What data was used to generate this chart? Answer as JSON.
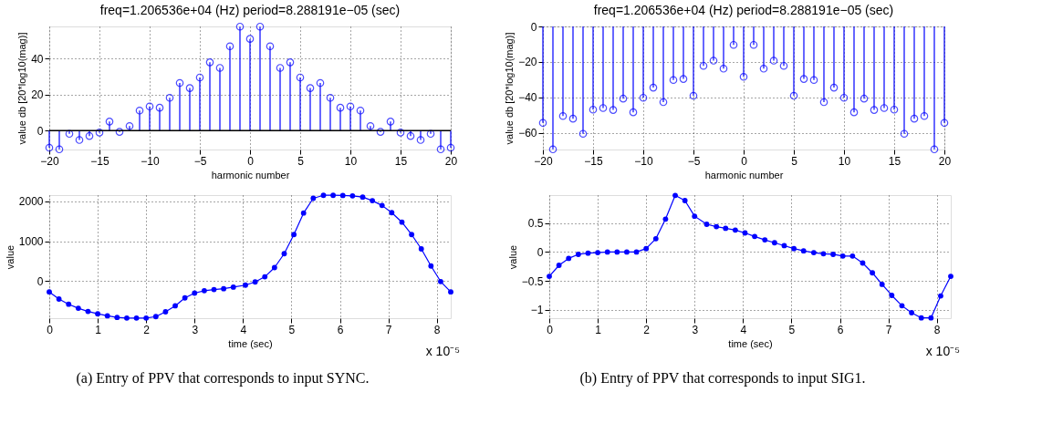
{
  "chart_data": [
    {
      "type": "lollipop",
      "title": "freq=1.206536e+04 (Hz)    period=8.288191e−05 (sec)",
      "xlabel": "harmonic number",
      "ylabel": "value  db  [20*log10(mag)]",
      "x": [
        -20,
        -19,
        -18,
        -17,
        -16,
        -15,
        -14,
        -13,
        -12,
        -11,
        -10,
        -9,
        -8,
        -7,
        -6,
        -5,
        -4,
        -3,
        -2,
        -1,
        0,
        1,
        2,
        3,
        4,
        5,
        6,
        7,
        8,
        9,
        10,
        11,
        12,
        13,
        14,
        15,
        16,
        17,
        18,
        19,
        20
      ],
      "series": [
        {
          "color": "#0000ff",
          "values": [
            -9.5,
            -10.4,
            -1.8,
            -5.2,
            -3,
            -1.1,
            5,
            -0.7,
            2.5,
            11.1,
            13.4,
            12.7,
            18.2,
            26.4,
            23.6,
            29.5,
            37.9,
            34.8,
            46.8,
            57.7,
            50.9,
            57.7,
            46.8,
            34.8,
            37.9,
            29.5,
            23.6,
            26.4,
            18.2,
            12.7,
            13.4,
            11.1,
            2.5,
            -0.7,
            5,
            -1.1,
            -3,
            -5.2,
            -1.8,
            -10.4,
            -9.5
          ]
        }
      ],
      "xlim": [
        -20,
        20
      ],
      "xticks": [
        -20,
        -15,
        -10,
        -5,
        0,
        5,
        10,
        15,
        20
      ],
      "ylim": [
        -10.5,
        57.8
      ],
      "yticks": [
        0,
        20,
        40
      ],
      "ref_lines": [
        {
          "axis": "y",
          "value": 0,
          "color": "#000000"
        }
      ],
      "grid": true,
      "marker": "circle"
    },
    {
      "type": "lollipop",
      "title": "freq=1.206536e+04 (Hz)    period=8.288191e−05 (sec)",
      "xlabel": "harmonic number",
      "ylabel": "value  db  [20*log10(mag)]",
      "x": [
        -20,
        -19,
        -18,
        -17,
        -16,
        -15,
        -14,
        -13,
        -12,
        -11,
        -10,
        -9,
        -8,
        -7,
        -6,
        -5,
        -4,
        -3,
        -2,
        -1,
        0,
        1,
        2,
        3,
        4,
        5,
        6,
        7,
        8,
        9,
        10,
        11,
        12,
        13,
        14,
        15,
        16,
        17,
        18,
        19,
        20
      ],
      "series": [
        {
          "color": "#0000ff",
          "values": [
            -54.4,
            -69.3,
            -50.5,
            -52,
            -60.5,
            -46.9,
            -46,
            -47.1,
            -40.7,
            -48.4,
            -40.2,
            -34.5,
            -42.7,
            -30.2,
            -29.6,
            -39.1,
            -22.2,
            -19.3,
            -23.8,
            -10.4,
            -28.4,
            -10.4,
            -23.8,
            -19.3,
            -22.2,
            -39.1,
            -29.6,
            -30.2,
            -42.7,
            -34.5,
            -40.2,
            -48.4,
            -40.7,
            -47.1,
            -46,
            -46.9,
            -60.5,
            -52,
            -50.5,
            -69.3,
            -54.4
          ]
        }
      ],
      "xlim": [
        -20,
        20
      ],
      "xticks": [
        -20,
        -15,
        -10,
        -5,
        0,
        5,
        10,
        15,
        20
      ],
      "ylim": [
        -69.4,
        0
      ],
      "yticks": [
        -60,
        -40,
        -20,
        0
      ],
      "grid": true,
      "marker": "circle"
    },
    {
      "type": "line",
      "xlabel": "time (sec)",
      "ylabel": "value",
      "x": [
        0,
        0.2,
        0.4,
        0.6,
        0.8,
        1.0,
        1.2,
        1.4,
        1.6,
        1.8,
        2.0,
        2.2,
        2.4,
        2.6,
        2.8,
        3.0,
        3.2,
        3.4,
        3.6,
        3.8,
        4.05,
        4.25,
        4.45,
        4.65,
        4.85,
        5.05,
        5.25,
        5.45,
        5.66,
        5.86,
        6.06,
        6.26,
        6.47,
        6.67,
        6.87,
        7.07,
        7.28,
        7.48,
        7.68,
        7.88,
        8.08,
        8.288
      ],
      "series": [
        {
          "color": "#0000ff",
          "values": [
            -270,
            -450,
            -580,
            -680,
            -760,
            -820,
            -870,
            -910,
            -927,
            -927,
            -927,
            -890,
            -770,
            -620,
            -420,
            -300,
            -240,
            -210,
            -190,
            -150,
            -100,
            -20,
            110,
            340,
            690,
            1170,
            1710,
            2080,
            2155,
            2155,
            2150,
            2140,
            2110,
            2020,
            1900,
            1720,
            1480,
            1170,
            810,
            380,
            -10,
            -270
          ]
        }
      ],
      "xlim": [
        0,
        8.288
      ],
      "xticks": [
        0,
        1,
        2,
        3,
        4,
        5,
        6,
        7,
        8
      ],
      "ylim": [
        -930,
        2160
      ],
      "yticks": [
        0,
        1000,
        2000
      ],
      "annotations": [
        "x 10⁻⁵",
        "(a)  Entry of PPV that corresponds to input SYNC."
      ],
      "grid": true,
      "marker": "circle",
      "line_style": "solid"
    },
    {
      "type": "line",
      "xlabel": "time (sec)",
      "ylabel": "value",
      "x": [
        0,
        0.2,
        0.4,
        0.6,
        0.8,
        1.0,
        1.2,
        1.4,
        1.6,
        1.8,
        2.0,
        2.2,
        2.4,
        2.6,
        2.8,
        3.0,
        3.25,
        3.45,
        3.64,
        3.84,
        4.04,
        4.24,
        4.45,
        4.65,
        4.85,
        5.05,
        5.25,
        5.46,
        5.66,
        5.86,
        6.06,
        6.26,
        6.47,
        6.67,
        6.87,
        7.07,
        7.28,
        7.48,
        7.68,
        7.88,
        8.08,
        8.288
      ],
      "series": [
        {
          "color": "#0000ff",
          "values": [
            -0.42,
            -0.23,
            -0.11,
            -0.04,
            -0.02,
            -0.01,
            0,
            0,
            0,
            0,
            0.06,
            0.23,
            0.57,
            0.98,
            0.89,
            0.62,
            0.48,
            0.44,
            0.41,
            0.38,
            0.33,
            0.27,
            0.21,
            0.16,
            0.11,
            0.06,
            0.02,
            -0.01,
            -0.03,
            -0.04,
            -0.07,
            -0.07,
            -0.19,
            -0.36,
            -0.56,
            -0.75,
            -0.93,
            -1.05,
            -1.14,
            -1.14,
            -0.76,
            -0.42
          ]
        }
      ],
      "xlim": [
        0,
        8.288
      ],
      "xticks": [
        0,
        1,
        2,
        3,
        4,
        5,
        6,
        7,
        8
      ],
      "ylim": [
        -1.145,
        0.985
      ],
      "yticks": [
        -1,
        -0.5,
        0,
        0.5
      ],
      "annotations": [
        "x 10⁻⁵",
        "(b)  Entry of PPV that corresponds to input SIG1."
      ],
      "grid": true,
      "marker": "circle",
      "line_style": "solid"
    }
  ]
}
